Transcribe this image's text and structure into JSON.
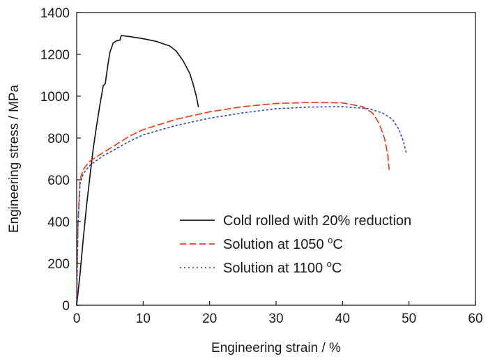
{
  "chart_data": {
    "type": "line",
    "title": "",
    "xlabel": "Engineering strain / %",
    "ylabel": "Engineering stress / MPa",
    "xlim": [
      0,
      60
    ],
    "ylim": [
      0,
      1400
    ],
    "xticks": [
      0,
      10,
      20,
      30,
      40,
      50,
      60
    ],
    "yticks": [
      0,
      200,
      400,
      600,
      800,
      1000,
      1200,
      1400
    ],
    "grid": false,
    "legend": {
      "position": "bottom-right"
    },
    "series": [
      {
        "name": "Cold rolled with 20% reduction",
        "superscript": "",
        "suffix": "",
        "color": "#1a1a1a",
        "dash": "solid",
        "x": [
          0,
          0.5,
          1,
          1.5,
          2,
          2.5,
          3,
          3.5,
          4,
          4.3,
          4.7,
          5,
          5.5,
          6,
          6.5,
          6.7,
          8,
          10,
          12,
          14,
          15,
          16,
          17,
          17.5,
          18,
          18.3
        ],
        "y": [
          0,
          150,
          320,
          480,
          620,
          750,
          860,
          960,
          1050,
          1060,
          1150,
          1210,
          1255,
          1265,
          1268,
          1290,
          1285,
          1275,
          1262,
          1240,
          1215,
          1170,
          1110,
          1060,
          1000,
          950
        ]
      },
      {
        "name": "Solution at 1050",
        "superscript": "o",
        "suffix": "C",
        "color": "#e8401c",
        "dash": "dashed",
        "x": [
          0,
          0.2,
          0.5,
          1,
          2,
          4,
          6,
          8,
          10,
          15,
          20,
          25,
          30,
          35,
          40,
          43,
          44.5,
          45.5,
          46.3,
          46.8,
          47
        ],
        "y": [
          0,
          400,
          600,
          650,
          690,
          730,
          770,
          810,
          840,
          890,
          925,
          950,
          965,
          970,
          968,
          950,
          920,
          870,
          800,
          720,
          650
        ]
      },
      {
        "name": "Solution at 1100",
        "superscript": "o",
        "suffix": "C",
        "color": "#3a54b8",
        "dash": "dotted",
        "x": [
          0,
          0.2,
          0.5,
          1,
          2,
          4,
          6,
          8,
          10,
          15,
          20,
          25,
          30,
          35,
          40,
          44,
          46,
          47.5,
          48.5,
          49.2,
          49.6
        ],
        "y": [
          0,
          380,
          580,
          630,
          670,
          715,
          750,
          785,
          815,
          860,
          895,
          920,
          940,
          948,
          950,
          940,
          920,
          890,
          840,
          780,
          725
        ]
      }
    ]
  }
}
